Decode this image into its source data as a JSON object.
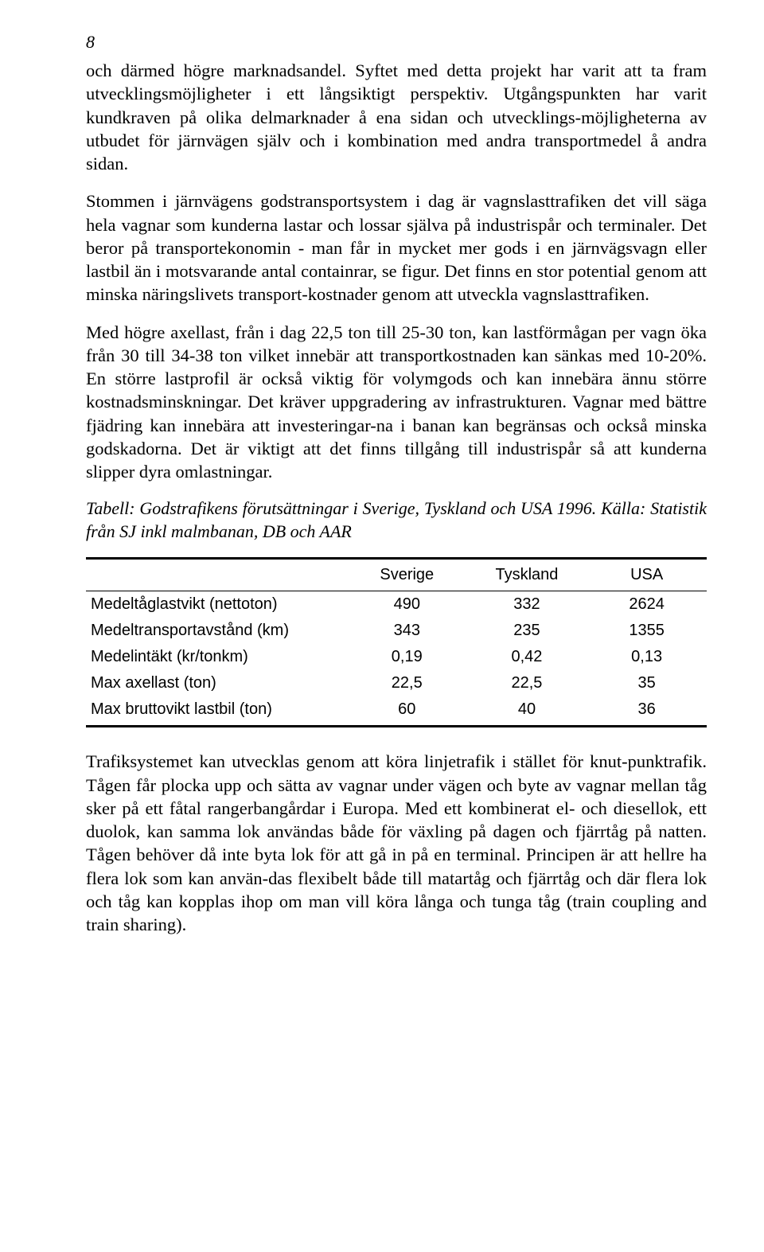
{
  "page_number": "8",
  "paragraphs": {
    "p1": "och därmed högre marknadsandel. Syftet med detta projekt har varit att ta fram utvecklingsmöjligheter i ett långsiktigt perspektiv. Utgångspunkten har varit kundkraven på olika delmarknader å ena sidan och utvecklings-möjligheterna av utbudet för järnvägen själv och i kombination med andra transportmedel å andra sidan.",
    "p2": "Stommen i järnvägens godstransportsystem i dag är vagnslasttrafiken det vill säga hela vagnar som kunderna lastar och lossar själva på industrispår och terminaler. Det beror på transportekonomin - man får in mycket mer gods i en järnvägsvagn eller lastbil än i motsvarande antal containrar, se figur. Det finns en stor potential genom att minska näringslivets transport-kostnader genom att utveckla vagnslasttrafiken.",
    "p3": "Med högre axellast, från i dag 22,5 ton till 25-30 ton, kan lastförmågan per vagn öka från 30 till 34-38 ton vilket innebär att transportkostnaden kan sänkas med 10-20%. En större lastprofil är också viktig för volymgods och kan innebära ännu större kostnadsminskningar. Det kräver uppgradering av infrastrukturen. Vagnar med bättre fjädring kan innebära att investeringar-na i banan kan begränsas och också minska godskadorna. Det är viktigt att det finns tillgång till industrispår så att kunderna slipper dyra omlastningar.",
    "p4": "Trafiksystemet kan utvecklas genom att köra linjetrafik i stället för knut-punktrafik. Tågen får plocka upp och sätta av vagnar under vägen och byte av vagnar mellan tåg sker på ett fåtal rangerbangårdar i Europa. Med ett kombinerat el- och diesellok, ett duolok, kan samma lok användas både för växling på dagen och fjärrtåg på natten. Tågen behöver då inte byta lok för att gå in på en terminal. Principen är att hellre ha flera lok som kan använ-das flexibelt både till matartåg och fjärrtåg och där flera lok och tåg kan kopplas ihop om man vill köra långa och tunga tåg (train coupling and train sharing)."
  },
  "table_caption": "Tabell: Godstrafikens förutsättningar i Sverige, Tyskland och USA 1996. Källa: Statistik från SJ inkl malmbanan, DB och AAR",
  "table": {
    "columns": [
      "",
      "Sverige",
      "Tyskland",
      "USA"
    ],
    "rows": [
      [
        "Medeltåglastvikt (nettoton)",
        "490",
        "332",
        "2624"
      ],
      [
        "Medeltransportavstånd (km)",
        "343",
        "235",
        "1355"
      ],
      [
        "Medelintäkt (kr/tonkm)",
        "0,19",
        "0,42",
        "0,13"
      ],
      [
        "Max axellast (ton)",
        "22,5",
        "22,5",
        "35"
      ],
      [
        "Max bruttovikt lastbil (ton)",
        "60",
        "40",
        "36"
      ]
    ]
  }
}
